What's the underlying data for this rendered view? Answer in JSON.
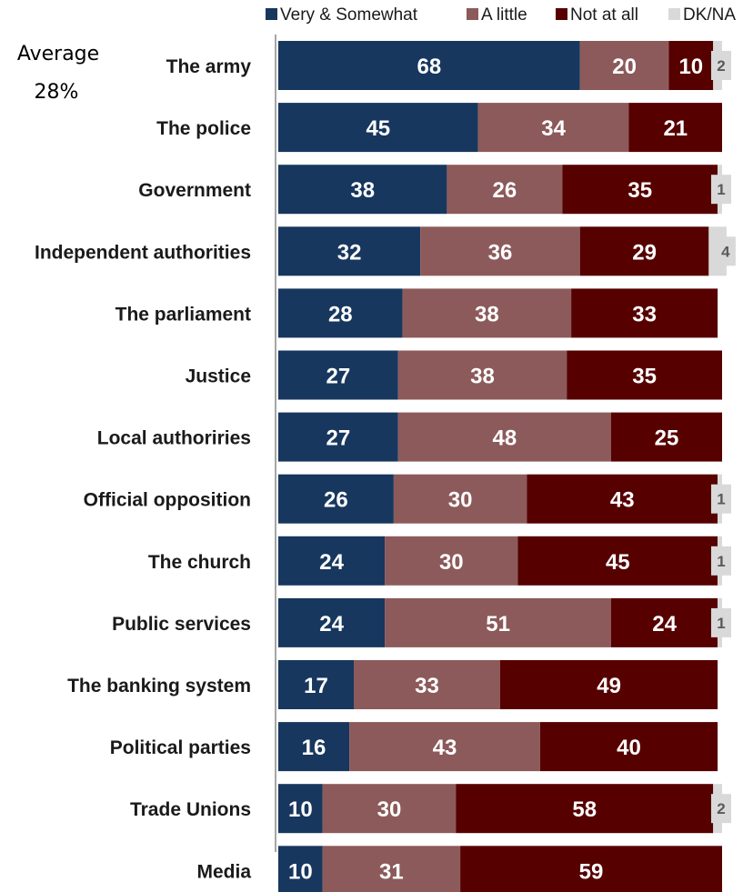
{
  "average": {
    "label": "Average",
    "value": "28%"
  },
  "chart_data": {
    "type": "bar",
    "orientation": "horizontal",
    "stacked": true,
    "categories": [
      "The army",
      "The police",
      "Government",
      "Independent authorities",
      "The parliament",
      "Justice",
      "Local authoriries",
      "Official opposition",
      "The church",
      "Public services",
      "The banking system",
      "Political parties",
      "Trade Unions",
      "Media"
    ],
    "series": [
      {
        "name": "Very & Somewhat",
        "color": "#17375e",
        "values": [
          68,
          45,
          38,
          32,
          28,
          27,
          27,
          26,
          24,
          24,
          17,
          16,
          10,
          10
        ]
      },
      {
        "name": "A little",
        "color": "#8c5a5a",
        "values": [
          20,
          34,
          26,
          36,
          38,
          38,
          48,
          30,
          30,
          51,
          33,
          43,
          30,
          31
        ]
      },
      {
        "name": "Not at all",
        "color": "#560000",
        "values": [
          10,
          21,
          35,
          29,
          33,
          35,
          25,
          43,
          45,
          24,
          49,
          40,
          58,
          59
        ]
      },
      {
        "name": "DK/NA",
        "color": "#d9d9d9",
        "values": [
          2,
          null,
          1,
          4,
          null,
          null,
          null,
          1,
          1,
          1,
          null,
          null,
          2,
          null
        ]
      }
    ],
    "xlim": [
      0,
      100
    ],
    "legend_position": "top",
    "grid": false
  }
}
